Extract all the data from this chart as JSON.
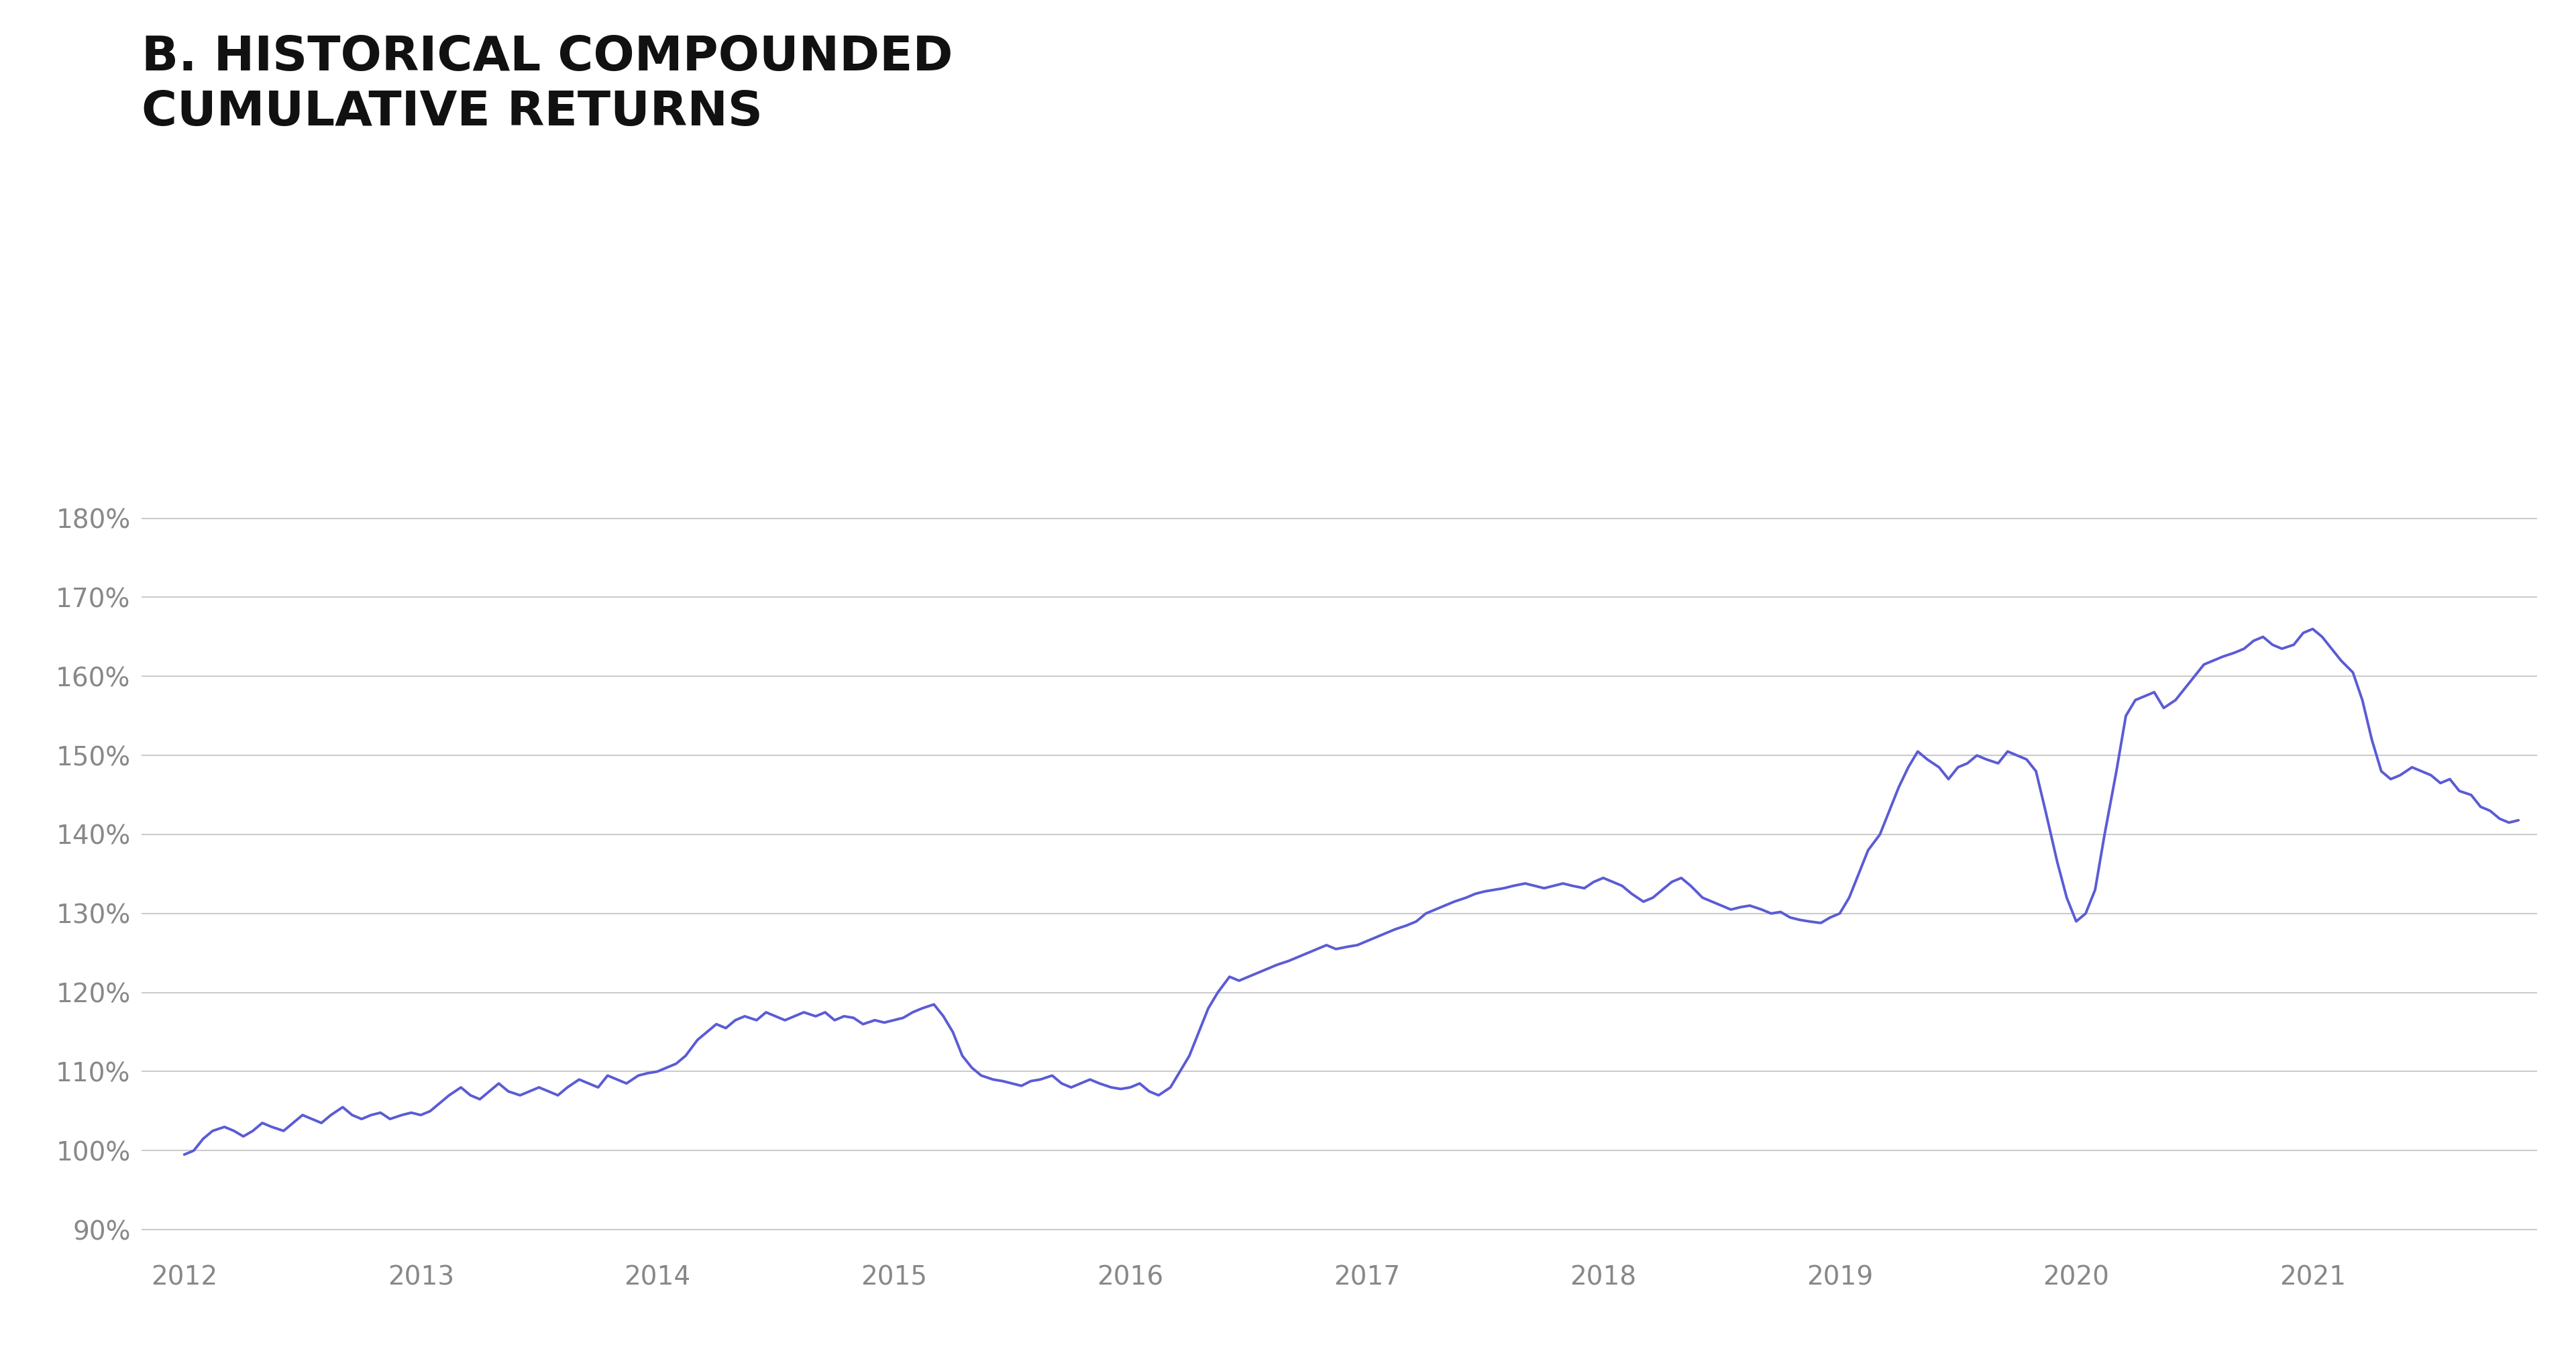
{
  "title_line1": "B. HISTORICAL COMPOUNDED",
  "title_line2": "CUMULATIVE RETURNS",
  "title_color": "#111111",
  "title_fontsize": 52,
  "background_color": "#ffffff",
  "line_color": "#5b5bd6",
  "line_width": 2.8,
  "ylim": [
    87,
    183
  ],
  "yticks": [
    90,
    100,
    110,
    120,
    130,
    140,
    150,
    160,
    170,
    180
  ],
  "xlim_start": 2011.82,
  "xlim_end": 2021.95,
  "xticks": [
    2012,
    2013,
    2014,
    2015,
    2016,
    2017,
    2018,
    2019,
    2020,
    2021
  ],
  "grid_color": "#cccccc",
  "tick_color": "#888888",
  "tick_fontsize": 28,
  "series": {
    "dates": [
      2012.0,
      2012.04,
      2012.08,
      2012.12,
      2012.17,
      2012.21,
      2012.25,
      2012.29,
      2012.33,
      2012.37,
      2012.42,
      2012.46,
      2012.5,
      2012.54,
      2012.58,
      2012.62,
      2012.67,
      2012.71,
      2012.75,
      2012.79,
      2012.83,
      2012.87,
      2012.92,
      2012.96,
      2013.0,
      2013.04,
      2013.08,
      2013.12,
      2013.17,
      2013.21,
      2013.25,
      2013.29,
      2013.33,
      2013.37,
      2013.42,
      2013.46,
      2013.5,
      2013.54,
      2013.58,
      2013.62,
      2013.67,
      2013.71,
      2013.75,
      2013.79,
      2013.83,
      2013.87,
      2013.92,
      2013.96,
      2014.0,
      2014.04,
      2014.08,
      2014.12,
      2014.17,
      2014.21,
      2014.25,
      2014.29,
      2014.33,
      2014.37,
      2014.42,
      2014.46,
      2014.5,
      2014.54,
      2014.58,
      2014.62,
      2014.67,
      2014.71,
      2014.75,
      2014.79,
      2014.83,
      2014.87,
      2014.92,
      2014.96,
      2015.0,
      2015.04,
      2015.08,
      2015.12,
      2015.17,
      2015.21,
      2015.25,
      2015.29,
      2015.33,
      2015.37,
      2015.42,
      2015.46,
      2015.5,
      2015.54,
      2015.58,
      2015.62,
      2015.67,
      2015.71,
      2015.75,
      2015.79,
      2015.83,
      2015.87,
      2015.92,
      2015.96,
      2016.0,
      2016.04,
      2016.08,
      2016.12,
      2016.17,
      2016.21,
      2016.25,
      2016.29,
      2016.33,
      2016.37,
      2016.42,
      2016.46,
      2016.5,
      2016.54,
      2016.58,
      2016.62,
      2016.67,
      2016.71,
      2016.75,
      2016.79,
      2016.83,
      2016.87,
      2016.92,
      2016.96,
      2017.0,
      2017.04,
      2017.08,
      2017.12,
      2017.17,
      2017.21,
      2017.25,
      2017.29,
      2017.33,
      2017.37,
      2017.42,
      2017.46,
      2017.5,
      2017.54,
      2017.58,
      2017.62,
      2017.67,
      2017.71,
      2017.75,
      2017.79,
      2017.83,
      2017.87,
      2017.92,
      2017.96,
      2018.0,
      2018.04,
      2018.08,
      2018.12,
      2018.17,
      2018.21,
      2018.25,
      2018.29,
      2018.33,
      2018.37,
      2018.42,
      2018.46,
      2018.5,
      2018.54,
      2018.58,
      2018.62,
      2018.67,
      2018.71,
      2018.75,
      2018.79,
      2018.83,
      2018.87,
      2018.92,
      2018.96,
      2019.0,
      2019.04,
      2019.08,
      2019.12,
      2019.17,
      2019.21,
      2019.25,
      2019.29,
      2019.33,
      2019.37,
      2019.42,
      2019.46,
      2019.5,
      2019.54,
      2019.58,
      2019.62,
      2019.67,
      2019.71,
      2019.75,
      2019.79,
      2019.83,
      2019.87,
      2019.92,
      2019.96,
      2020.0,
      2020.04,
      2020.08,
      2020.12,
      2020.17,
      2020.21,
      2020.25,
      2020.29,
      2020.33,
      2020.37,
      2020.42,
      2020.46,
      2020.5,
      2020.54,
      2020.58,
      2020.62,
      2020.67,
      2020.71,
      2020.75,
      2020.79,
      2020.83,
      2020.87,
      2020.92,
      2020.96,
      2021.0,
      2021.04,
      2021.08,
      2021.12,
      2021.17,
      2021.21,
      2021.25,
      2021.29,
      2021.33,
      2021.37,
      2021.42,
      2021.46,
      2021.5,
      2021.54,
      2021.58,
      2021.62,
      2021.67,
      2021.71,
      2021.75,
      2021.79,
      2021.83,
      2021.87
    ],
    "values": [
      99.5,
      100.0,
      101.5,
      102.5,
      103.0,
      102.5,
      101.8,
      102.5,
      103.5,
      103.0,
      102.5,
      103.5,
      104.5,
      104.0,
      103.5,
      104.5,
      105.5,
      104.5,
      104.0,
      104.5,
      104.8,
      104.0,
      104.5,
      104.8,
      104.5,
      105.0,
      106.0,
      107.0,
      108.0,
      107.0,
      106.5,
      107.5,
      108.5,
      107.5,
      107.0,
      107.5,
      108.0,
      107.5,
      107.0,
      108.0,
      109.0,
      108.5,
      108.0,
      109.5,
      109.0,
      108.5,
      109.5,
      109.8,
      110.0,
      110.5,
      111.0,
      112.0,
      114.0,
      115.0,
      116.0,
      115.5,
      116.5,
      117.0,
      116.5,
      117.5,
      117.0,
      116.5,
      117.0,
      117.5,
      117.0,
      117.5,
      116.5,
      117.0,
      116.8,
      116.0,
      116.5,
      116.2,
      116.5,
      116.8,
      117.5,
      118.0,
      118.5,
      117.0,
      115.0,
      112.0,
      110.5,
      109.5,
      109.0,
      108.8,
      108.5,
      108.2,
      108.8,
      109.0,
      109.5,
      108.5,
      108.0,
      108.5,
      109.0,
      108.5,
      108.0,
      107.8,
      108.0,
      108.5,
      107.5,
      107.0,
      108.0,
      110.0,
      112.0,
      115.0,
      118.0,
      120.0,
      122.0,
      121.5,
      122.0,
      122.5,
      123.0,
      123.5,
      124.0,
      124.5,
      125.0,
      125.5,
      126.0,
      125.5,
      125.8,
      126.0,
      126.5,
      127.0,
      127.5,
      128.0,
      128.5,
      129.0,
      130.0,
      130.5,
      131.0,
      131.5,
      132.0,
      132.5,
      132.8,
      133.0,
      133.2,
      133.5,
      133.8,
      133.5,
      133.2,
      133.5,
      133.8,
      133.5,
      133.2,
      134.0,
      134.5,
      134.0,
      133.5,
      132.5,
      131.5,
      132.0,
      133.0,
      134.0,
      134.5,
      133.5,
      132.0,
      131.5,
      131.0,
      130.5,
      130.8,
      131.0,
      130.5,
      130.0,
      130.2,
      129.5,
      129.2,
      129.0,
      128.8,
      129.5,
      130.0,
      132.0,
      135.0,
      138.0,
      140.0,
      143.0,
      146.0,
      148.5,
      150.5,
      149.5,
      148.5,
      147.0,
      148.5,
      149.0,
      150.0,
      149.5,
      149.0,
      150.5,
      150.0,
      149.5,
      148.0,
      143.0,
      136.5,
      132.0,
      129.0,
      130.0,
      133.0,
      140.0,
      148.0,
      155.0,
      157.0,
      157.5,
      158.0,
      156.0,
      157.0,
      158.5,
      160.0,
      161.5,
      162.0,
      162.5,
      163.0,
      163.5,
      164.5,
      165.0,
      164.0,
      163.5,
      164.0,
      165.5,
      166.0,
      165.0,
      163.5,
      162.0,
      160.5,
      157.0,
      152.0,
      148.0,
      147.0,
      147.5,
      148.5,
      148.0,
      147.5,
      146.5,
      147.0,
      145.5,
      145.0,
      143.5,
      143.0,
      142.0,
      141.5,
      141.8
    ]
  }
}
